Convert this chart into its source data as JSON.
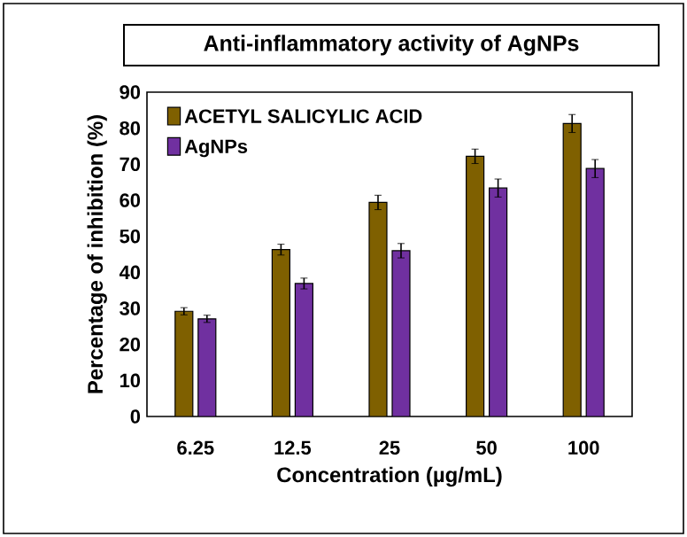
{
  "chart_data": {
    "type": "bar",
    "title": "Anti-inflammatory activity of AgNPs",
    "xlabel": "Concentration (µg/mL)",
    "ylabel": "Percentage of inhibition (%)",
    "categories": [
      "6.25",
      "12.5",
      "25",
      "50",
      "100"
    ],
    "series": [
      {
        "name": "ACETYL SALICYLIC ACID",
        "color": "#7f6000",
        "values": [
          29.2,
          46.3,
          59.4,
          72.2,
          81.3
        ],
        "errors": [
          1,
          1.5,
          2,
          2,
          2.5
        ]
      },
      {
        "name": "AgNPs",
        "color": "#7030a0",
        "values": [
          27.1,
          36.9,
          46.0,
          63.4,
          68.8
        ],
        "errors": [
          1,
          1.5,
          2,
          2.5,
          2.5
        ]
      }
    ],
    "ylim": [
      0,
      90
    ],
    "yticks": [
      0,
      10,
      20,
      30,
      40,
      50,
      60,
      70,
      80,
      90
    ],
    "grid": false,
    "legend": "top left"
  }
}
